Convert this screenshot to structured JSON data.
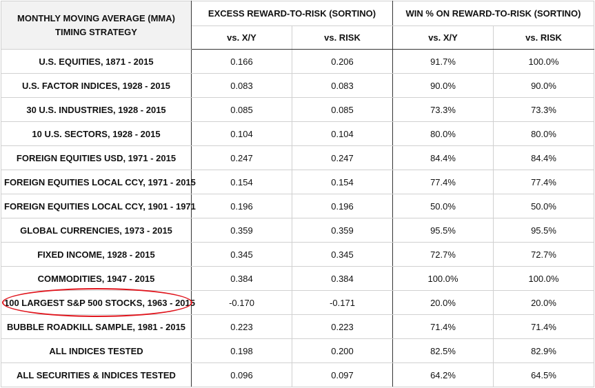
{
  "header": {
    "corner_title": "MONTHLY MOVING AVERAGE (MMA) TIMING STRATEGY",
    "group1": "EXCESS REWARD-TO-RISK (SORTINO)",
    "group2": "WIN % ON REWARD-TO-RISK (SORTINO)",
    "sub_headers": [
      "vs. X/Y",
      "vs. RISK",
      "vs. X/Y",
      "vs. RISK"
    ]
  },
  "rows": [
    {
      "label": "U.S. EQUITIES, 1871 - 2015",
      "values": [
        "0.166",
        "0.206",
        "91.7%",
        "100.0%"
      ]
    },
    {
      "label": "U.S. FACTOR INDICES, 1928 - 2015",
      "values": [
        "0.083",
        "0.083",
        "90.0%",
        "90.0%"
      ]
    },
    {
      "label": "30 U.S. INDUSTRIES, 1928 - 2015",
      "values": [
        "0.085",
        "0.085",
        "73.3%",
        "73.3%"
      ]
    },
    {
      "label": "10 U.S. SECTORS, 1928 - 2015",
      "values": [
        "0.104",
        "0.104",
        "80.0%",
        "80.0%"
      ]
    },
    {
      "label": "FOREIGN EQUITIES USD, 1971 - 2015",
      "values": [
        "0.247",
        "0.247",
        "84.4%",
        "84.4%"
      ]
    },
    {
      "label": "FOREIGN EQUITIES LOCAL CCY, 1971 - 2015",
      "values": [
        "0.154",
        "0.154",
        "77.4%",
        "77.4%"
      ]
    },
    {
      "label": "FOREIGN EQUITIES LOCAL CCY, 1901 - 1971",
      "values": [
        "0.196",
        "0.196",
        "50.0%",
        "50.0%"
      ]
    },
    {
      "label": "GLOBAL CURRENCIES, 1973 - 2015",
      "values": [
        "0.359",
        "0.359",
        "95.5%",
        "95.5%"
      ]
    },
    {
      "label": "FIXED INCOME, 1928 - 2015",
      "values": [
        "0.345",
        "0.345",
        "72.7%",
        "72.7%"
      ]
    },
    {
      "label": "COMMODITIES, 1947 - 2015",
      "values": [
        "0.384",
        "0.384",
        "100.0%",
        "100.0%"
      ]
    },
    {
      "label": "100 LARGEST S&P 500 STOCKS, 1963 - 2015",
      "values": [
        "-0.170",
        "-0.171",
        "20.0%",
        "20.0%"
      ]
    },
    {
      "label": "BUBBLE ROADKILL SAMPLE, 1981 - 2015",
      "values": [
        "0.223",
        "0.223",
        "71.4%",
        "71.4%"
      ]
    },
    {
      "label": "ALL INDICES TESTED",
      "values": [
        "0.198",
        "0.200",
        "82.5%",
        "82.9%"
      ]
    },
    {
      "label": "ALL SECURITIES & INDICES TESTED",
      "values": [
        "0.096",
        "0.097",
        "64.2%",
        "64.5%"
      ]
    }
  ],
  "highlight_color": "#e0141c"
}
